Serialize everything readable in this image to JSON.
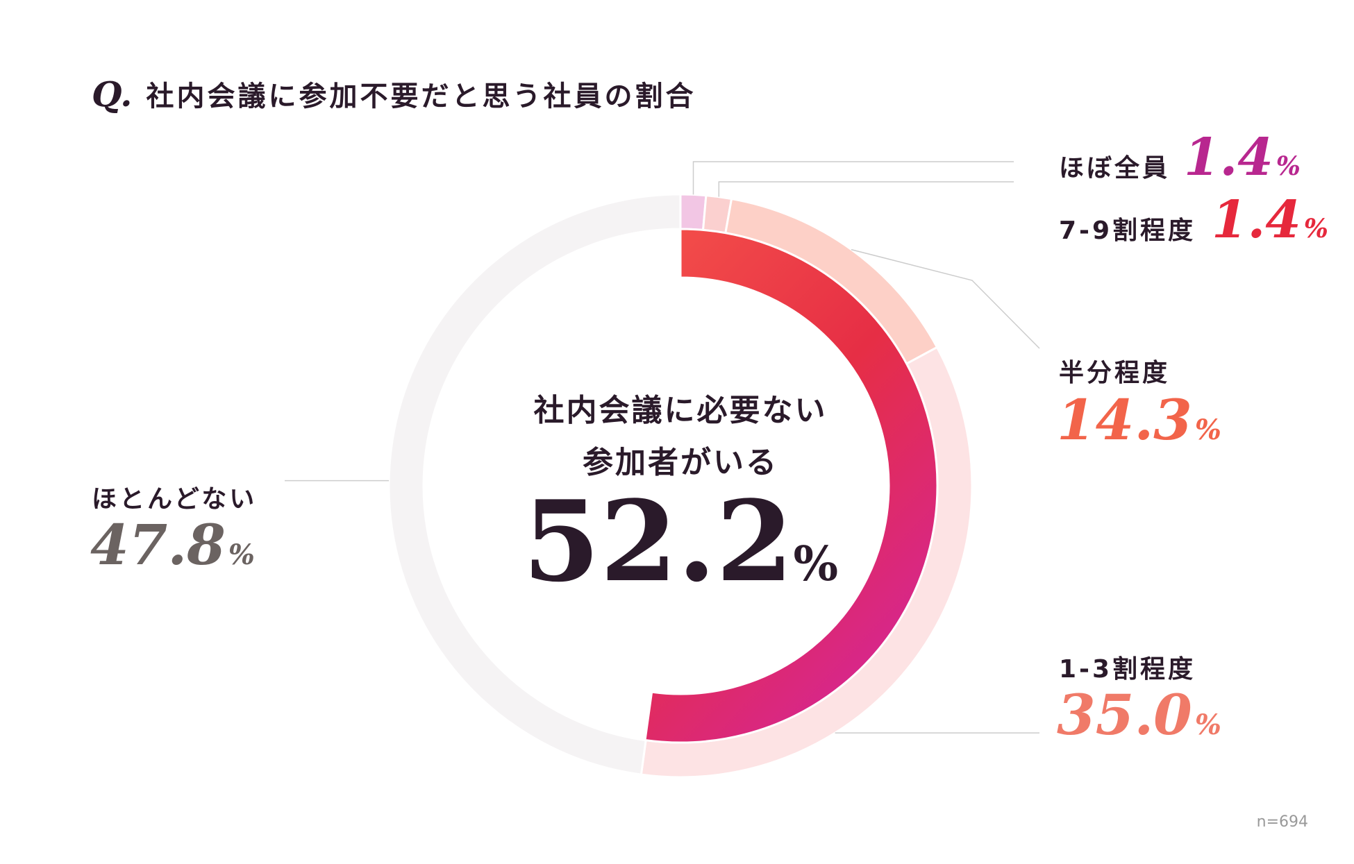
{
  "title": {
    "q": "Q.",
    "text": "社内会議に参加不要だと思う社員の割合"
  },
  "center": {
    "line1": "社内会議に必要ない",
    "line2": "参加者がいる",
    "value": "52.2",
    "unit": "%"
  },
  "sample": "n=694",
  "colors": {
    "almost_all": "#b8278f",
    "seven_nine": "#e6283c",
    "half": "#f2644a",
    "one_three": "#f07a68",
    "almost_none": "#6b6361",
    "ring_almost_all": "#f2c6e4",
    "ring_seven_nine": "#fbd0cf",
    "ring_half": "#fdd0c7",
    "ring_one_three": "#fde3e4",
    "ring_almost_none": "#f5f3f4",
    "inner_start": "#f4504a",
    "inner_mid": "#e62e45",
    "inner_end": "#d6268f"
  },
  "chart_data": {
    "type": "pie",
    "title": "社内会議に参加不要だと思う社員の割合",
    "categories": [
      "ほぼ全員",
      "7-9割程度",
      "半分程度",
      "1-3割程度",
      "ほとんどない"
    ],
    "values": [
      1.4,
      1.4,
      14.3,
      35.0,
      47.8
    ],
    "value_labels": [
      "1.4",
      "1.4",
      "14.3",
      "35.0",
      "47.8"
    ],
    "unit": "%",
    "inner_ring": {
      "label": "社内会議に必要ない参加者がいる",
      "value": 52.2
    },
    "n": 694
  }
}
